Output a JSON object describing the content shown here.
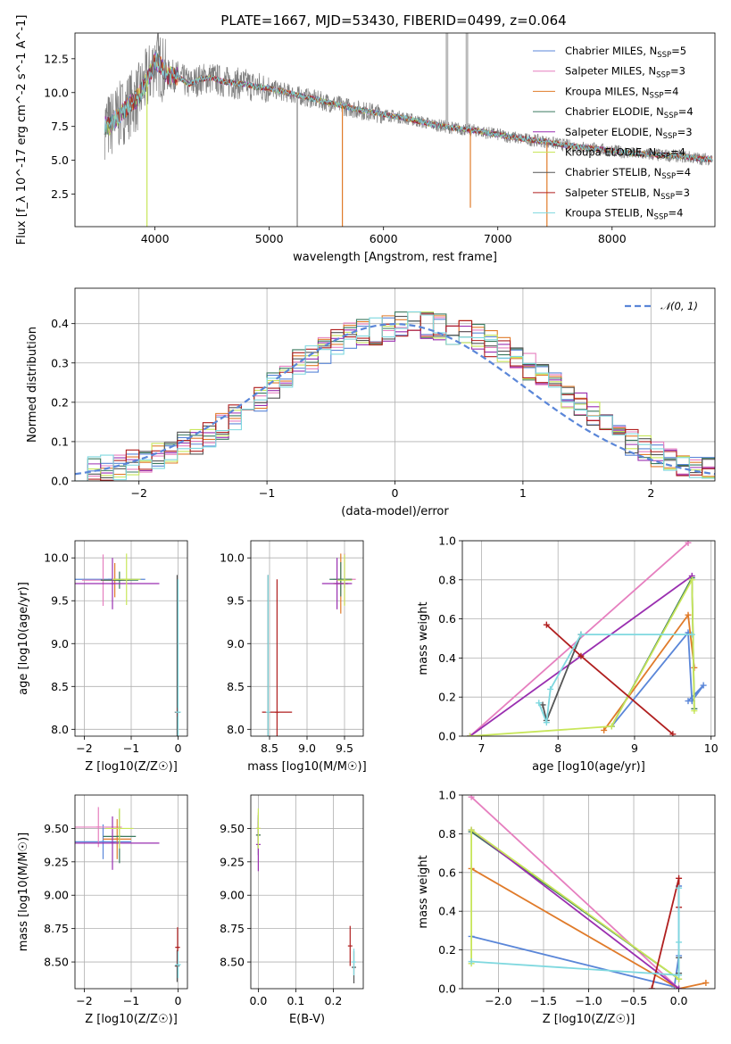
{
  "figure_title": "PLATE=1667, MJD=53430, FIBERID=0499, z=0.064",
  "series_colors": [
    "#5a86d8",
    "#e67fbf",
    "#e07b2a",
    "#3b7a5f",
    "#9a2fb0",
    "#c8e65a",
    "#555555",
    "#b01f1f",
    "#7fd8df"
  ],
  "chart_data": [
    {
      "id": "spectrum",
      "type": "line",
      "title": "PLATE=1667, MJD=53430, FIBERID=0499, z=0.064",
      "xlabel": "wavelength [Angstrom, rest frame]",
      "ylabel": "Flux [f_λ 10^-17 erg cm^-2 s^-1 A^-1]",
      "xlim": [
        3300,
        8900
      ],
      "ylim": [
        0.1,
        14.4
      ],
      "xticks": [
        4000,
        5000,
        6000,
        7000,
        8000
      ],
      "yticks": [
        2.5,
        5.0,
        7.5,
        10.0,
        12.5
      ],
      "grid": false,
      "legend_position": "top-right",
      "legend": [
        {
          "label": "Chabrier MILES, N",
          "sub": "SSP",
          "suffix": "=5"
        },
        {
          "label": "Salpeter MILES, N",
          "sub": "SSP",
          "suffix": "=3"
        },
        {
          "label": "Kroupa MILES, N",
          "sub": "SSP",
          "suffix": "=4"
        },
        {
          "label": "Chabrier ELODIE, N",
          "sub": "SSP",
          "suffix": "=4"
        },
        {
          "label": "Salpeter ELODIE, N",
          "sub": "SSP",
          "suffix": "=3"
        },
        {
          "label": "Kroupa ELODIE, N",
          "sub": "SSP",
          "suffix": "=4"
        },
        {
          "label": "Chabrier STELIB, N",
          "sub": "SSP",
          "suffix": "=4"
        },
        {
          "label": "Salpeter STELIB, N",
          "sub": "SSP",
          "suffix": "=3"
        },
        {
          "label": "Kroupa STELIB, N",
          "sub": "SSP",
          "suffix": "=4"
        }
      ],
      "data_curve": {
        "x": [
          3560,
          3600,
          3650,
          3700,
          3750,
          3800,
          3850,
          3900,
          3950,
          4000,
          4050,
          4100,
          4200,
          4300,
          4400,
          4500,
          4600,
          4700,
          4800,
          4900,
          5000,
          5200,
          5400,
          5600,
          5800,
          6000,
          6200,
          6400,
          6600,
          6800,
          7000,
          7200,
          7400,
          7600,
          7800,
          8000,
          8200,
          8400,
          8600,
          8800
        ],
        "y": [
          7.6,
          7.5,
          8.0,
          8.4,
          8.9,
          9.3,
          9.6,
          10.4,
          11.2,
          12.4,
          12.0,
          11.3,
          11.2,
          10.6,
          11.0,
          11.1,
          10.8,
          10.7,
          10.6,
          10.4,
          10.3,
          9.9,
          9.5,
          9.1,
          8.7,
          8.4,
          8.1,
          7.7,
          7.4,
          7.2,
          6.9,
          6.6,
          6.4,
          6.1,
          5.9,
          5.7,
          5.5,
          5.4,
          5.3,
          5.1
        ]
      },
      "absorption_dips": [
        {
          "x": 3930,
          "depth_to": 0.1
        },
        {
          "x": 5245,
          "depth_to": 0.1
        },
        {
          "x": 5640,
          "depth_to": 0.1
        },
        {
          "x": 6760,
          "depth_to": 1.5
        },
        {
          "x": 7430,
          "depth_to": 0.1
        }
      ],
      "emission_spikes": [
        {
          "x": 6555,
          "to": 14.4
        },
        {
          "x": 6730,
          "to": 14.4
        }
      ]
    },
    {
      "id": "residuals",
      "type": "histogram",
      "xlabel": "(data-model)/error",
      "ylabel": "Normed distribution",
      "xlim": [
        -2.5,
        2.5
      ],
      "ylim": [
        0.0,
        0.49
      ],
      "xticks": [
        -2,
        -1,
        0,
        1,
        2
      ],
      "yticks": [
        0.0,
        0.1,
        0.2,
        0.3,
        0.4
      ],
      "grid": true,
      "legend_position": "top-right",
      "legend": [
        "𝒩(0, 1)"
      ],
      "bin_width": 0.1,
      "bin_start": -2.5,
      "base_values": [
        0.025,
        0.028,
        0.032,
        0.038,
        0.045,
        0.055,
        0.065,
        0.078,
        0.09,
        0.1,
        0.12,
        0.14,
        0.16,
        0.19,
        0.21,
        0.24,
        0.27,
        0.3,
        0.31,
        0.33,
        0.35,
        0.37,
        0.38,
        0.38,
        0.39,
        0.4,
        0.4,
        0.395,
        0.39,
        0.38,
        0.38,
        0.365,
        0.35,
        0.33,
        0.31,
        0.29,
        0.27,
        0.245,
        0.22,
        0.19,
        0.17,
        0.15,
        0.12,
        0.1,
        0.085,
        0.07,
        0.06,
        0.048,
        0.038,
        0.03
      ]
    },
    {
      "id": "age-vs-Z",
      "type": "errorbar",
      "xlabel": "Z [log10(Z/Z☉)]",
      "ylabel": "age [log10(age/yr)]",
      "xlim": [
        -2.2,
        0.2
      ],
      "ylim": [
        7.92,
        10.2
      ],
      "xticks": [
        -2,
        -1,
        0
      ],
      "yticks": [
        8.0,
        8.5,
        9.0,
        9.5,
        10.0
      ],
      "grid": true,
      "points": [
        {
          "s": 0,
          "x": -1.45,
          "y": 9.75,
          "xe": 0.75,
          "ye": 0.0
        },
        {
          "s": 1,
          "x": -1.6,
          "y": 9.74,
          "xe": 0.45,
          "ye": 0.3
        },
        {
          "s": 2,
          "x": -1.35,
          "y": 9.74,
          "xe": 0.3,
          "ye": 0.2
        },
        {
          "s": 3,
          "x": -1.25,
          "y": 9.74,
          "xe": 0.4,
          "ye": 0.1
        },
        {
          "s": 4,
          "x": -1.4,
          "y": 9.7,
          "xe": 1.0,
          "ye": 0.3
        },
        {
          "s": 5,
          "x": -1.1,
          "y": 9.75,
          "xe": 0.3,
          "ye": 0.3
        },
        {
          "s": 6,
          "x": -0.02,
          "y": 8.2,
          "xe": 0.05,
          "ye": 1.6
        },
        {
          "s": 7,
          "x": -0.01,
          "y": 8.2,
          "xe": 0.05,
          "ye": 0.05
        },
        {
          "s": 8,
          "x": 0.0,
          "y": 8.2,
          "xe": 0.06,
          "ye": 1.55
        }
      ]
    },
    {
      "id": "age-vs-mass",
      "type": "errorbar",
      "xlabel": "mass [log10(M/M☉)]",
      "ylabel": "",
      "xlim": [
        8.25,
        9.75
      ],
      "ylim": [
        7.92,
        10.2
      ],
      "xticks": [
        8.5,
        9.0,
        9.5
      ],
      "yticks": [
        8.0,
        8.5,
        9.0,
        9.5,
        10.0
      ],
      "grid": true,
      "points": [
        {
          "s": 0,
          "x": 9.5,
          "y": 9.7,
          "xe": 0.05,
          "ye": 0.05
        },
        {
          "s": 1,
          "x": 9.5,
          "y": 9.75,
          "xe": 0.15,
          "ye": 0.3
        },
        {
          "s": 2,
          "x": 9.45,
          "y": 9.7,
          "xe": 0.1,
          "ye": 0.35
        },
        {
          "s": 3,
          "x": 9.45,
          "y": 9.75,
          "xe": 0.15,
          "ye": 0.2
        },
        {
          "s": 4,
          "x": 9.4,
          "y": 9.7,
          "xe": 0.2,
          "ye": 0.3
        },
        {
          "s": 5,
          "x": 9.5,
          "y": 9.74,
          "xe": 0.1,
          "ye": 0.3
        },
        {
          "s": 6,
          "x": 8.48,
          "y": 8.2,
          "xe": 0.0,
          "ye": 1.6
        },
        {
          "s": 7,
          "x": 8.6,
          "y": 8.2,
          "xe": 0.2,
          "ye": 1.55
        },
        {
          "s": 8,
          "x": 8.48,
          "y": 8.2,
          "xe": 0.0,
          "ye": 1.6
        }
      ]
    },
    {
      "id": "weight-vs-age",
      "type": "line",
      "xlabel": "age [log10(age/yr)]",
      "ylabel": "mass weight",
      "xlim": [
        6.75,
        10.05
      ],
      "ylim": [
        0.0,
        1.0
      ],
      "xticks": [
        7,
        8,
        9,
        10
      ],
      "yticks": [
        0.0,
        0.2,
        0.4,
        0.6,
        0.8,
        1.0
      ],
      "grid": true,
      "series": [
        {
          "s": 0,
          "x": [
            8.7,
            9.7,
            9.75,
            9.9,
            9.7
          ],
          "y": [
            0.05,
            0.53,
            0.18,
            0.26,
            0.18
          ]
        },
        {
          "s": 1,
          "x": [
            6.85,
            9.7,
            9.7
          ],
          "y": [
            0.0,
            0.99,
            0.99
          ]
        },
        {
          "s": 2,
          "x": [
            8.6,
            9.7,
            9.78
          ],
          "y": [
            0.03,
            0.62,
            0.35
          ]
        },
        {
          "s": 3,
          "x": [
            8.7,
            9.75,
            9.78
          ],
          "y": [
            0.05,
            0.81,
            0.14
          ]
        },
        {
          "s": 4,
          "x": [
            6.85,
            9.75
          ],
          "y": [
            0.0,
            0.82
          ]
        },
        {
          "s": 5,
          "x": [
            6.85,
            8.7,
            9.75,
            9.78
          ],
          "y": [
            0.0,
            0.05,
            0.8,
            0.13
          ]
        },
        {
          "s": 6,
          "x": [
            7.8,
            7.85,
            8.3
          ],
          "y": [
            0.16,
            0.08,
            0.52
          ]
        },
        {
          "s": 7,
          "x": [
            7.85,
            8.3,
            9.5
          ],
          "y": [
            0.57,
            0.41,
            0.01
          ]
        },
        {
          "s": 8,
          "x": [
            7.75,
            7.85,
            7.9,
            8.3,
            9.75
          ],
          "y": [
            0.17,
            0.07,
            0.24,
            0.52,
            0.52
          ]
        }
      ]
    },
    {
      "id": "mass-vs-Z",
      "type": "errorbar",
      "xlabel": "Z [log10(Z/Z☉)]",
      "ylabel": "mass [log10(M/M☉)]",
      "xlim": [
        -2.2,
        0.2
      ],
      "ylim": [
        8.3,
        9.75
      ],
      "xticks": [
        -2,
        -1,
        0
      ],
      "yticks": [
        8.5,
        8.75,
        9.0,
        9.25,
        9.5
      ],
      "grid": true,
      "points": [
        {
          "s": 0,
          "x": -1.6,
          "y": 9.4,
          "xe": 0.6,
          "ye": 0.13
        },
        {
          "s": 1,
          "x": -1.7,
          "y": 9.51,
          "xe": 0.5,
          "ye": 0.15
        },
        {
          "s": 2,
          "x": -1.3,
          "y": 9.42,
          "xe": 0.3,
          "ye": 0.15
        },
        {
          "s": 3,
          "x": -1.25,
          "y": 9.44,
          "xe": 0.35,
          "ye": 0.2
        },
        {
          "s": 4,
          "x": -1.4,
          "y": 9.39,
          "xe": 1.0,
          "ye": 0.2
        },
        {
          "s": 5,
          "x": -1.25,
          "y": 9.5,
          "xe": 0.3,
          "ye": 0.15
        },
        {
          "s": 6,
          "x": -0.02,
          "y": 8.47,
          "xe": 0.05,
          "ye": 0.12
        },
        {
          "s": 7,
          "x": -0.01,
          "y": 8.61,
          "xe": 0.05,
          "ye": 0.15
        },
        {
          "s": 8,
          "x": 0.0,
          "y": 8.48,
          "xe": 0.06,
          "ye": 0.1
        }
      ]
    },
    {
      "id": "mass-vs-EBV",
      "type": "errorbar",
      "xlabel": "E(B-V)",
      "ylabel": "",
      "xlim": [
        -0.02,
        0.28
      ],
      "ylim": [
        8.3,
        9.75
      ],
      "xticks": [
        0.0,
        0.1,
        0.2
      ],
      "yticks": [
        8.5,
        8.75,
        9.0,
        9.25,
        9.5
      ],
      "grid": true,
      "points": [
        {
          "s": 0,
          "x": 0.0,
          "y": 9.45,
          "xe": 0.0,
          "ye": 0.1
        },
        {
          "s": 1,
          "x": 0.0,
          "y": 9.5,
          "xe": 0.0,
          "ye": 0.12
        },
        {
          "s": 2,
          "x": 0.0,
          "y": 9.45,
          "xe": 0.0,
          "ye": 0.1
        },
        {
          "s": 3,
          "x": 0.0,
          "y": 9.45,
          "xe": 0.0,
          "ye": 0.15
        },
        {
          "s": 4,
          "x": 0.0,
          "y": 9.38,
          "xe": 0.0,
          "ye": 0.2
        },
        {
          "s": 5,
          "x": 0.0,
          "y": 9.5,
          "xe": 0.0,
          "ye": 0.15
        },
        {
          "s": 6,
          "x": 0.255,
          "y": 8.46,
          "xe": 0.0,
          "ye": 0.12
        },
        {
          "s": 7,
          "x": 0.245,
          "y": 8.62,
          "xe": 0.0,
          "ye": 0.15
        },
        {
          "s": 8,
          "x": 0.255,
          "y": 8.5,
          "xe": 0.0,
          "ye": 0.1
        }
      ]
    },
    {
      "id": "weight-vs-Z",
      "type": "line",
      "xlabel": "Z [log10(Z/Z☉)]",
      "ylabel": "mass weight",
      "xlim": [
        -2.4,
        0.4
      ],
      "ylim": [
        0.0,
        1.0
      ],
      "xticks": [
        -2.0,
        -1.5,
        -1.0,
        -0.5,
        0.0
      ],
      "yticks": [
        0.0,
        0.2,
        0.4,
        0.6,
        0.8,
        1.0
      ],
      "grid": true,
      "series": [
        {
          "s": 0,
          "x": [
            -2.3,
            -0.05,
            0.0,
            0.0
          ],
          "y": [
            0.27,
            0.01,
            0.17,
            0.53
          ]
        },
        {
          "s": 1,
          "x": [
            -2.3,
            0.0
          ],
          "y": [
            0.99,
            0.0
          ]
        },
        {
          "s": 2,
          "x": [
            -2.3,
            0.0,
            0.3
          ],
          "y": [
            0.62,
            0.0,
            0.03
          ]
        },
        {
          "s": 3,
          "x": [
            -2.3,
            0.0
          ],
          "y": [
            0.81,
            0.05
          ]
        },
        {
          "s": 4,
          "x": [
            -2.3,
            0.0
          ],
          "y": [
            0.82,
            0.0
          ]
        },
        {
          "s": 5,
          "x": [
            -2.3,
            -2.3,
            0.0
          ],
          "y": [
            0.13,
            0.82,
            0.05
          ]
        },
        {
          "s": 6,
          "x": [
            0.0,
            0.0
          ],
          "y": [
            0.08,
            0.16
          ]
        },
        {
          "s": 7,
          "x": [
            -0.3,
            0.0,
            0.0
          ],
          "y": [
            0.0,
            0.57,
            0.42
          ]
        },
        {
          "s": 8,
          "x": [
            -2.3,
            0.0,
            0.0,
            0.0
          ],
          "y": [
            0.14,
            0.07,
            0.24,
            0.52
          ]
        }
      ]
    }
  ]
}
